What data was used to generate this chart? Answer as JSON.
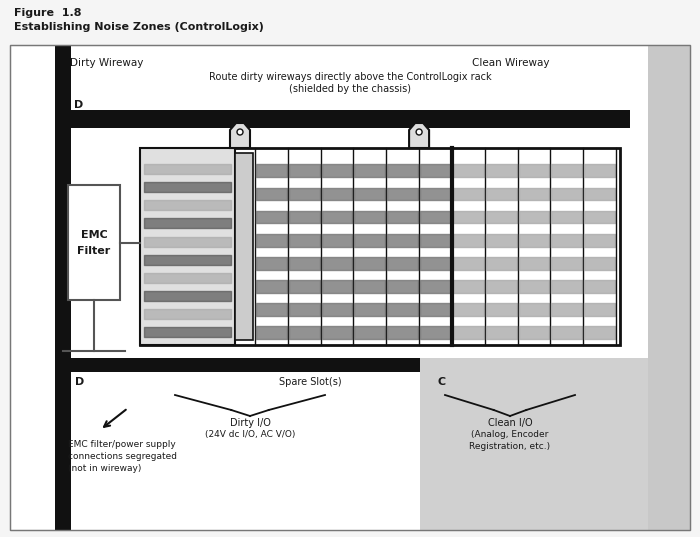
{
  "title_line1": "Figure  1.8",
  "title_line2": "Establishing Noise Zones (ControlLogix)",
  "bg_color": "#f5f5f5",
  "text_color": "#1a1a1a",
  "red_color": "#cc2200",
  "dark": "#111111",
  "gray_sidebar": "#c8c8c8",
  "gray_clean": "#d0d0d0",
  "dirty_wireway": "Dirty Wireway",
  "clean_wireway": "Clean Wireway",
  "route_text1": "Route dirty wireways directly above the ControlLogix rack",
  "route_text2": "(shielded by the chassis)",
  "label_D_top": "D",
  "label_D_bot": "D",
  "label_C": "C",
  "spare_slots": "Spare Slot(s)",
  "emc_line1": "EMC",
  "emc_line2": "Filter",
  "emc_note1": "EMC filter/power supply",
  "emc_note2": "connections segregated",
  "emc_note3": "(not in wireway)",
  "dirty_io1": "Dirty I/O",
  "dirty_io2": "(24V dc I/O, AC V/O)",
  "clean_io1": "Clean I/O",
  "clean_io2": "(Analog, Encoder",
  "clean_io3": "Registration, etc.)"
}
